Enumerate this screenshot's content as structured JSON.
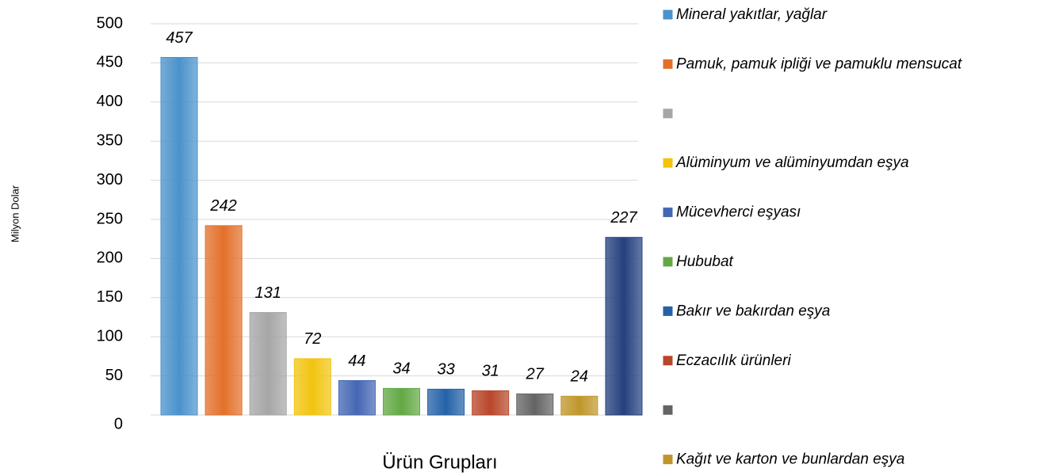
{
  "chart_data": {
    "type": "bar",
    "y_label": "Milyon Dolar",
    "x_label": "Ürün Grupları",
    "categories": [
      "Mineral yakıtlar, yağlar",
      "Pamuk, pamuk ipliği ve pamuklu mensucat",
      null,
      "Alüminyum ve alüminyumdan eşya",
      "Mücevherci eşyası",
      "Hububat",
      "Bakır ve bakırdan eşya",
      "Eczacılık ürünleri",
      null,
      "Kağıt ve karton ve bunlardan eşya",
      null
    ],
    "values": [
      457,
      242,
      131,
      72,
      44,
      34,
      33,
      31,
      27,
      24,
      227
    ],
    "colors": [
      "#4a92cc",
      "#e3702a",
      "#a6a6a6",
      "#f2c410",
      "#4466b4",
      "#62a844",
      "#2462a8",
      "#b8462a",
      "#646464",
      "#c0962a",
      "#24407e"
    ],
    "ylim": [
      0,
      500
    ],
    "yticks": [
      0,
      50,
      100,
      150,
      200,
      250,
      300,
      350,
      400,
      450,
      500
    ],
    "grid": true
  }
}
